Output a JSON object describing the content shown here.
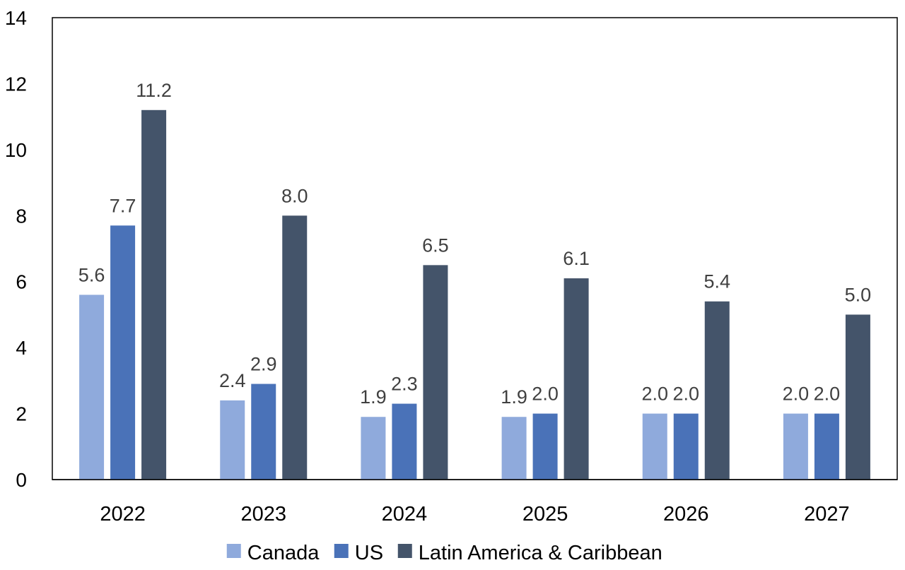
{
  "chart_data": {
    "type": "bar",
    "categories": [
      "2022",
      "2023",
      "2024",
      "2025",
      "2026",
      "2027"
    ],
    "series": [
      {
        "name": "Canada",
        "values": [
          5.6,
          2.4,
          1.9,
          1.9,
          2.0,
          2.0
        ],
        "labels": [
          "5.6",
          "2.4",
          "1.9",
          "1.9",
          "2.0",
          "2.0"
        ],
        "color": "#8FAADC"
      },
      {
        "name": "US",
        "values": [
          7.7,
          2.9,
          2.3,
          2.0,
          2.0,
          2.0
        ],
        "labels": [
          "7.7",
          "2.9",
          "2.3",
          "2.0",
          "2.0",
          "2.0"
        ],
        "color": "#4A72B8"
      },
      {
        "name": "Latin America & Caribbean",
        "values": [
          11.2,
          8.0,
          6.5,
          6.1,
          5.4,
          5.0
        ],
        "labels": [
          "11.2",
          "8.0",
          "6.5",
          "6.1",
          "5.4",
          "5.0"
        ],
        "color": "#44546A"
      }
    ],
    "ylim": [
      0,
      14
    ],
    "yticks": [
      "0",
      "2",
      "4",
      "6",
      "8",
      "10",
      "12",
      "14"
    ],
    "grid": false,
    "legend": "bottom",
    "title": "",
    "xlabel": "",
    "ylabel": ""
  }
}
